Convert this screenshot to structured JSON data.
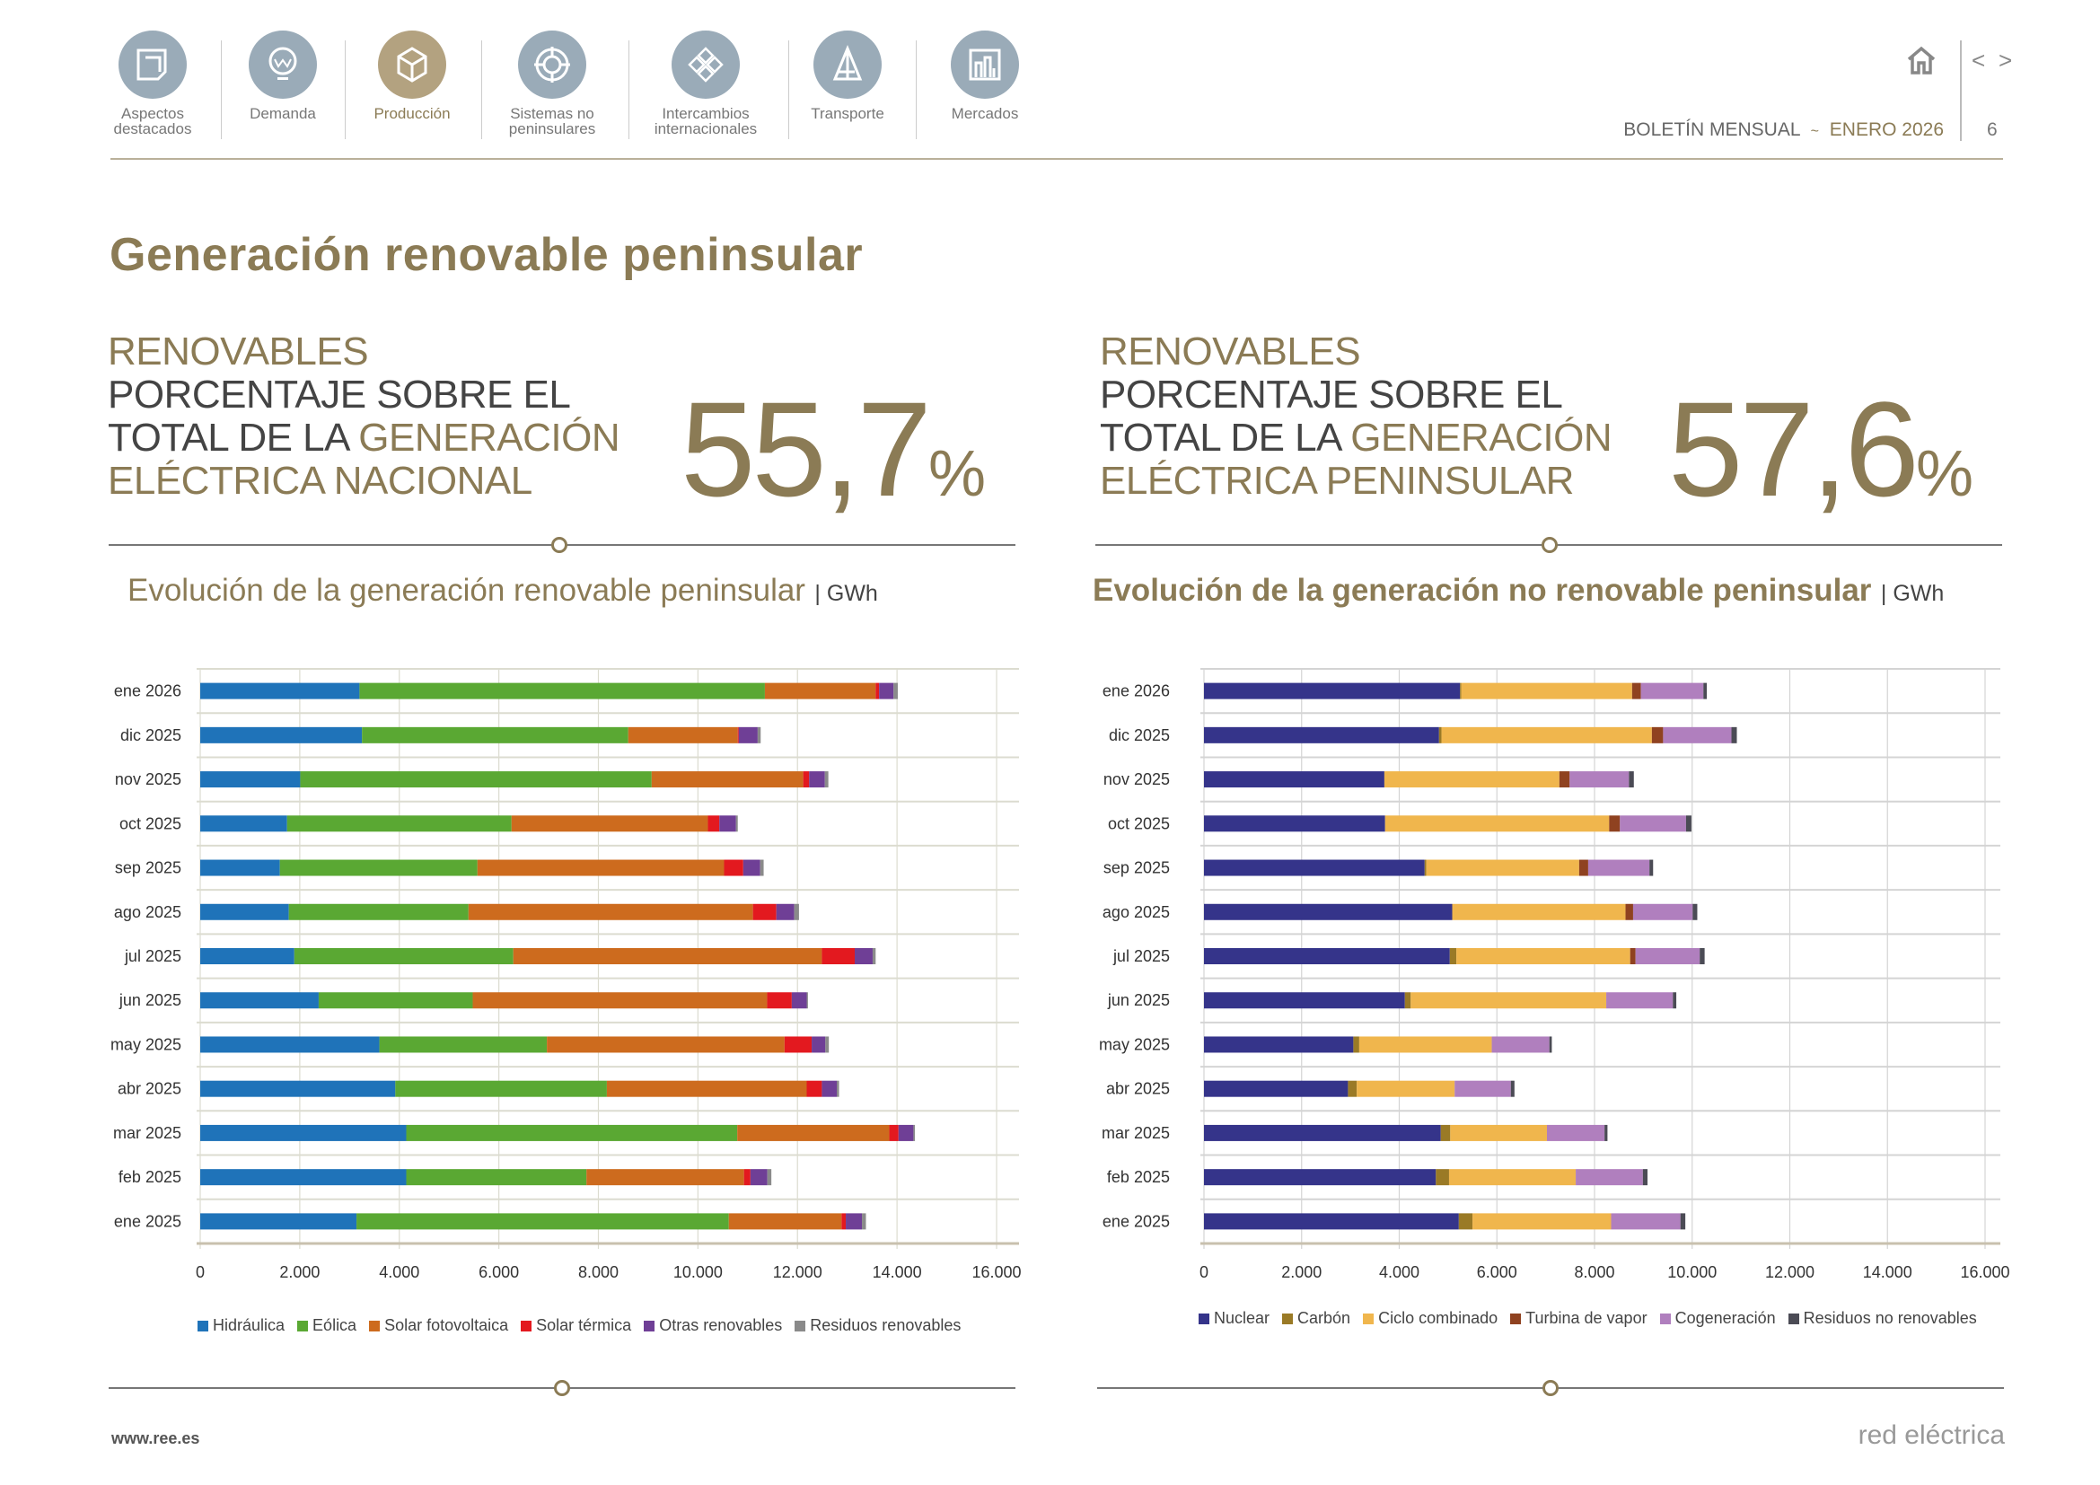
{
  "nav": {
    "items": [
      {
        "label": "Aspectos destacados",
        "icon": "document-icon",
        "active": false
      },
      {
        "label": "Demanda",
        "icon": "lightbulb-icon",
        "active": false
      },
      {
        "label": "Producción",
        "icon": "cube-icon",
        "active": true
      },
      {
        "label": "Sistemas no peninsulares",
        "icon": "target-icon",
        "active": false
      },
      {
        "label": "Intercambios internacionales",
        "icon": "diamond-grid-icon",
        "active": false
      },
      {
        "label": "Transporte",
        "icon": "pylon-icon",
        "active": false
      },
      {
        "label": "Mercados",
        "icon": "bar-chart-icon",
        "active": false
      }
    ],
    "bulletin": "BOLETÍN MENSUAL",
    "separator": "~",
    "month": "ENERO 2026",
    "page": "6",
    "prev": "<",
    "next": ">"
  },
  "page_title": "Generación renovable peninsular",
  "kpi_left": {
    "l1": "RENOVABLES",
    "l2": "PORCENTAJE SOBRE EL",
    "l3a": "TOTAL DE LA ",
    "l3b": "GENERACIÓN",
    "l4": "ELÉCTRICA NACIONAL",
    "value": "55,7",
    "unit": "%"
  },
  "kpi_right": {
    "l1": "RENOVABLES",
    "l2": "PORCENTAJE SOBRE EL",
    "l3a": "TOTAL DE LA ",
    "l3b": "GENERACIÓN",
    "l4": "ELÉCTRICA PENINSULAR",
    "value": "57,6",
    "unit": "%"
  },
  "footer": {
    "url": "www.ree.es",
    "brand": "red eléctrica"
  },
  "colors": {
    "accent": "#8b7b55",
    "nav_icon": "#9aabb8",
    "nav_active": "#b3a280"
  },
  "chart_data": [
    {
      "type": "bar",
      "orientation": "horizontal",
      "stacked": true,
      "title": "Evolución de la generación renovable peninsular",
      "unit": "GWh",
      "xlim": [
        0,
        16000
      ],
      "xticks": [
        "0",
        "2.000",
        "4.000",
        "6.000",
        "8.000",
        "10.000",
        "12.000",
        "14.000",
        "16.000"
      ],
      "grid": true,
      "legend": "bottom",
      "categories": [
        "ene 2026",
        "dic 2025",
        "nov 2025",
        "oct 2025",
        "sep 2025",
        "ago 2025",
        "jul 2025",
        "jun 2025",
        "may 2025",
        "abr 2025",
        "mar 2025",
        "feb 2025",
        "ene 2025"
      ],
      "series": [
        {
          "name": "Hidráulica",
          "color": "#1f73b9",
          "values": [
            3200,
            3250,
            2010,
            1745,
            1600,
            1780,
            1890,
            2380,
            3600,
            3920,
            4140,
            4140,
            3140
          ]
        },
        {
          "name": "Eólica",
          "color": "#5aa833",
          "values": [
            8145,
            5350,
            7060,
            4510,
            3970,
            3610,
            4400,
            3095,
            3365,
            4250,
            6650,
            3620,
            7480
          ]
        },
        {
          "name": "Solar fotovoltaica",
          "color": "#cd6b1e",
          "values": [
            2225,
            2200,
            3045,
            3945,
            4955,
            5715,
            6200,
            5915,
            4775,
            4015,
            3055,
            3165,
            2265
          ]
        },
        {
          "name": "Solar térmica",
          "color": "#e3191f",
          "values": [
            70,
            20,
            120,
            230,
            385,
            470,
            660,
            495,
            545,
            305,
            185,
            130,
            85
          ]
        },
        {
          "name": "Otras renovables",
          "color": "#6f3f96",
          "values": [
            290,
            380,
            315,
            335,
            340,
            360,
            360,
            300,
            275,
            300,
            300,
            340,
            325
          ]
        },
        {
          "name": "Residuos renovables",
          "color": "#8a8a8a",
          "values": [
            85,
            60,
            70,
            35,
            70,
            95,
            60,
            25,
            70,
            45,
            30,
            80,
            80
          ]
        }
      ]
    },
    {
      "type": "bar",
      "orientation": "horizontal",
      "stacked": true,
      "title": "Evolución de la generación no renovable peninsular",
      "unit": "GWh",
      "xlim": [
        0,
        16000
      ],
      "xticks": [
        "0",
        "2.000",
        "4.000",
        "6.000",
        "8.000",
        "10.000",
        "12.000",
        "14.000",
        "16.000"
      ],
      "grid": true,
      "legend": "bottom",
      "categories": [
        "ene 2026",
        "dic 2025",
        "nov 2025",
        "oct 2025",
        "sep 2025",
        "ago 2025",
        "jul 2025",
        "jun 2025",
        "may 2025",
        "abr 2025",
        "mar 2025",
        "feb 2025",
        "ene 2025"
      ],
      "series": [
        {
          "name": "Nuclear",
          "color": "#35348a",
          "values": [
            5245,
            4815,
            3695,
            3710,
            4520,
            5085,
            5035,
            4115,
            3060,
            2950,
            4850,
            4750,
            5220
          ]
        },
        {
          "name": "Carbón",
          "color": "#9a7a26",
          "values": [
            25,
            50,
            0,
            0,
            35,
            0,
            135,
            120,
            120,
            180,
            195,
            270,
            280
          ]
        },
        {
          "name": "Ciclo combinado",
          "color": "#f0b64d",
          "values": [
            3500,
            4310,
            3585,
            4590,
            3130,
            3550,
            3560,
            4005,
            2715,
            2005,
            1980,
            2595,
            2840
          ]
        },
        {
          "name": "Turbina de vapor",
          "color": "#8f4220",
          "values": [
            180,
            230,
            210,
            220,
            185,
            155,
            110,
            0,
            0,
            0,
            0,
            0,
            0
          ]
        },
        {
          "name": "Cogeneración",
          "color": "#b07fbe",
          "values": [
            1280,
            1400,
            1215,
            1355,
            1255,
            1220,
            1315,
            1365,
            1180,
            1150,
            1180,
            1375,
            1420
          ]
        },
        {
          "name": "Residuos no renovables",
          "color": "#4b4b55",
          "values": [
            70,
            110,
            100,
            110,
            75,
            95,
            100,
            70,
            50,
            75,
            60,
            95,
            100
          ]
        }
      ]
    }
  ]
}
